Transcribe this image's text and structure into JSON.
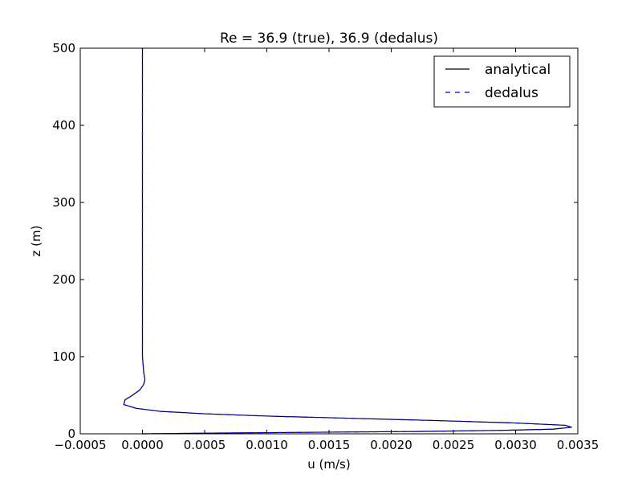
{
  "chart_data": {
    "type": "line",
    "title": "Re = 36.9 (true), 36.9 (dedalus)",
    "xlabel": "u (m/s)",
    "ylabel": "z (m)",
    "xlim": [
      -0.0005,
      0.0035
    ],
    "ylim": [
      0,
      500
    ],
    "xticks": [
      -0.0005,
      0.0,
      0.0005,
      0.001,
      0.0015,
      0.002,
      0.0025,
      0.003,
      0.0035
    ],
    "xtick_labels": [
      "−0.0005",
      "0.0000",
      "0.0005",
      "0.0010",
      "0.0015",
      "0.0020",
      "0.0025",
      "0.0030",
      "0.0035"
    ],
    "yticks": [
      0,
      100,
      200,
      300,
      400,
      500
    ],
    "ytick_labels": [
      "0",
      "100",
      "200",
      "300",
      "400",
      "500"
    ],
    "grid": false,
    "legend_position": "top-right",
    "series": [
      {
        "name": "analytical",
        "color": "#000000",
        "style": "solid",
        "x": [
          0.0,
          0.0006,
          0.0014,
          0.0022,
          0.0029,
          0.0033,
          0.00345,
          0.0034,
          0.003,
          0.0024,
          0.0017,
          0.001,
          0.0005,
          0.00015,
          -5e-05,
          -0.00015,
          -0.00014,
          -8e-05,
          -2e-05,
          1e-05,
          2e-05,
          1e-05,
          0.0,
          0.0,
          0.0
        ],
        "y": [
          0,
          1,
          2,
          3,
          4.5,
          6,
          8.5,
          11,
          14,
          17,
          20,
          23,
          26,
          29,
          33,
          38,
          44,
          50,
          57,
          64,
          70,
          80,
          100,
          300,
          500
        ]
      },
      {
        "name": "dedalus",
        "color": "#0000ff",
        "style": "dashed",
        "x": [
          0.0,
          0.0006,
          0.0014,
          0.0022,
          0.0029,
          0.0033,
          0.00345,
          0.0034,
          0.003,
          0.0024,
          0.0017,
          0.001,
          0.0005,
          0.00015,
          -5e-05,
          -0.00015,
          -0.00014,
          -8e-05,
          -2e-05,
          1e-05,
          2e-05,
          1e-05,
          0.0,
          0.0,
          0.0
        ],
        "y": [
          0,
          1,
          2,
          3,
          4.5,
          6,
          8.5,
          11,
          14,
          17,
          20,
          23,
          26,
          29,
          33,
          38,
          44,
          50,
          57,
          64,
          70,
          80,
          100,
          300,
          500
        ]
      }
    ]
  }
}
